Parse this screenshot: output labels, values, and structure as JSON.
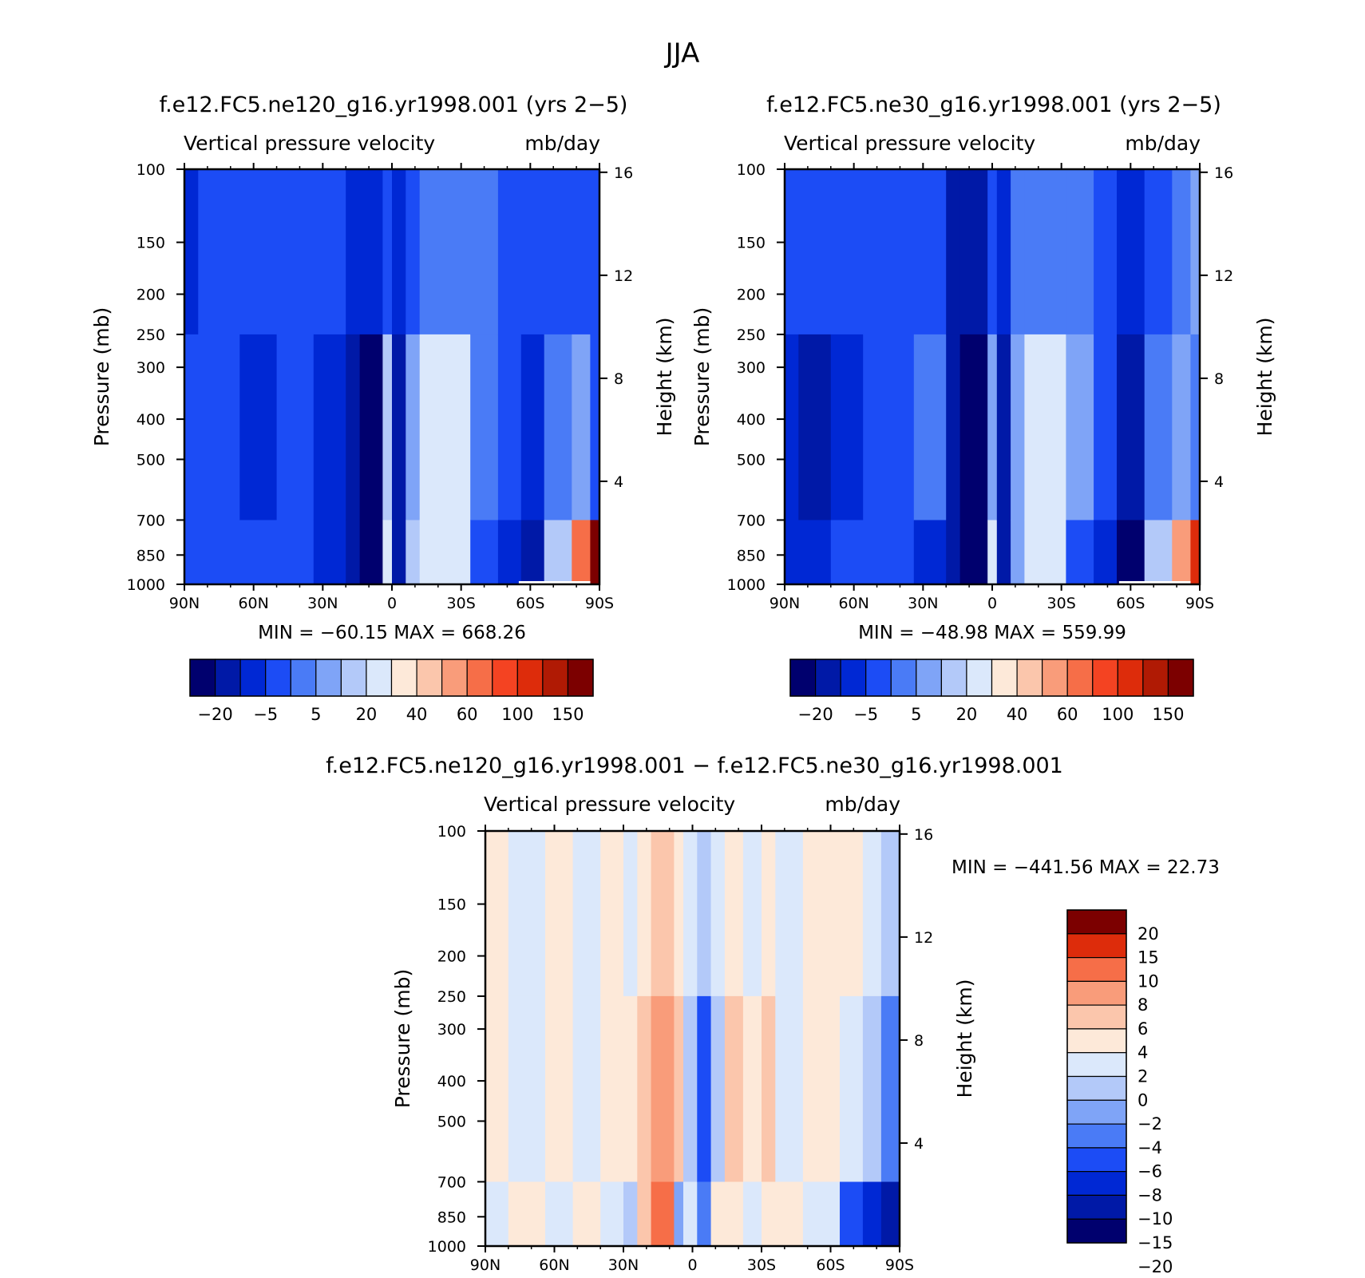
{
  "figure": {
    "title": "JJA"
  },
  "colors": {
    "diverging16": [
      "#00006e",
      "#0019a7",
      "#0028d4",
      "#1c4cf5",
      "#4a7bf6",
      "#7fa4f7",
      "#b3c9f9",
      "#dbe8fb",
      "#fde9d9",
      "#fbc6ac",
      "#f99c7a",
      "#f66e48",
      "#f44322",
      "#dd2c0b",
      "#b01a04",
      "#7c0000"
    ],
    "difference14": [
      "#00006e",
      "#0019a7",
      "#0028d4",
      "#1c4cf5",
      "#4a7bf6",
      "#7fa4f7",
      "#b3c9f9",
      "#dbe8fb",
      "#fde9d9",
      "#fbc6ac",
      "#f99c7a",
      "#f66e48",
      "#dd2c0b",
      "#7c0000"
    ],
    "no_data_strip": "#ffffff"
  },
  "chart_data": [
    {
      "type": "heatmap",
      "title": "f.e12.FC5.ne120_g16.yr1998.001 (yrs 2−5)",
      "subtitle_left": "Vertical pressure velocity",
      "subtitle_right": "mb/day",
      "xlabel": "",
      "ylabel": "Pressure (mb)",
      "ylabel_right": "Height (km)",
      "x_ticks": [
        "90N",
        "60N",
        "30N",
        "0",
        "30S",
        "60S",
        "90S"
      ],
      "x_lat": [
        90,
        60,
        30,
        0,
        -30,
        -60,
        -90
      ],
      "y_ticks": [
        "100",
        "150",
        "200",
        "250",
        "300",
        "400",
        "500",
        "700",
        "850",
        "1000"
      ],
      "y_pressure": [
        100,
        150,
        200,
        250,
        300,
        400,
        500,
        700,
        850,
        1000
      ],
      "y_log_scale": true,
      "right_ticks": [
        "16",
        "12",
        "8",
        "4"
      ],
      "right_height_km": [
        16,
        12,
        8,
        4
      ],
      "min_max_text": "MIN = −60.15   MAX = 668.26",
      "min": -60.15,
      "max": 668.26,
      "colorbar_labels": [
        "−20",
        "−5",
        "5",
        "20",
        "40",
        "60",
        "100",
        "150"
      ],
      "field_columns": [
        {
          "lat0": 90,
          "lat1": 84,
          "top": 2,
          "mid": 3,
          "low": 3
        },
        {
          "lat0": 84,
          "lat1": 66,
          "top": 3,
          "mid": 3,
          "low": 3
        },
        {
          "lat0": 66,
          "lat1": 50,
          "top": 3,
          "mid": 2,
          "low": 3
        },
        {
          "lat0": 50,
          "lat1": 34,
          "top": 3,
          "mid": 3,
          "low": 3
        },
        {
          "lat0": 34,
          "lat1": 20,
          "top": 3,
          "mid": 2,
          "low": 2
        },
        {
          "lat0": 20,
          "lat1": 14,
          "top": 2,
          "mid": 1,
          "low": 1
        },
        {
          "lat0": 14,
          "lat1": 4,
          "top": 2,
          "mid": 0,
          "low": 0
        },
        {
          "lat0": 4,
          "lat1": 0,
          "top": 3,
          "mid": 6,
          "low": 7
        },
        {
          "lat0": 0,
          "lat1": -6,
          "top": 2,
          "mid": 1,
          "low": 1
        },
        {
          "lat0": -6,
          "lat1": -12,
          "top": 3,
          "mid": 5,
          "low": 6
        },
        {
          "lat0": -12,
          "lat1": -34,
          "top": 4,
          "mid": 7,
          "low": 7
        },
        {
          "lat0": -34,
          "lat1": -46,
          "top": 4,
          "mid": 4,
          "low": 3
        },
        {
          "lat0": -46,
          "lat1": -56,
          "top": 3,
          "mid": 3,
          "low": 2
        },
        {
          "lat0": -56,
          "lat1": -66,
          "top": 3,
          "mid": 2,
          "low": 1
        },
        {
          "lat0": -66,
          "lat1": -78,
          "top": 3,
          "mid": 4,
          "low": 6
        },
        {
          "lat0": -78,
          "lat1": -86,
          "top": 3,
          "mid": 5,
          "low": 11
        },
        {
          "lat0": -86,
          "lat1": -90,
          "top": 3,
          "mid": 3,
          "low": 15
        }
      ]
    },
    {
      "type": "heatmap",
      "title": "f.e12.FC5.ne30_g16.yr1998.001 (yrs 2−5)",
      "subtitle_left": "Vertical pressure velocity",
      "subtitle_right": "mb/day",
      "xlabel": "",
      "ylabel": "Pressure (mb)",
      "ylabel_right": "Height (km)",
      "x_ticks": [
        "90N",
        "60N",
        "30N",
        "0",
        "30S",
        "60S",
        "90S"
      ],
      "x_lat": [
        90,
        60,
        30,
        0,
        -30,
        -60,
        -90
      ],
      "y_ticks": [
        "100",
        "150",
        "200",
        "250",
        "300",
        "400",
        "500",
        "700",
        "850",
        "1000"
      ],
      "y_pressure": [
        100,
        150,
        200,
        250,
        300,
        400,
        500,
        700,
        850,
        1000
      ],
      "y_log_scale": true,
      "right_ticks": [
        "16",
        "12",
        "8",
        "4"
      ],
      "right_height_km": [
        16,
        12,
        8,
        4
      ],
      "min_max_text": "MIN = −48.98   MAX = 559.99",
      "min": -48.98,
      "max": 559.99,
      "colorbar_labels": [
        "−20",
        "−5",
        "5",
        "20",
        "40",
        "60",
        "100",
        "150"
      ],
      "field_columns": [
        {
          "lat0": 90,
          "lat1": 84,
          "top": 3,
          "mid": 2,
          "low": 2
        },
        {
          "lat0": 84,
          "lat1": 70,
          "top": 3,
          "mid": 1,
          "low": 2
        },
        {
          "lat0": 70,
          "lat1": 56,
          "top": 3,
          "mid": 2,
          "low": 3
        },
        {
          "lat0": 56,
          "lat1": 34,
          "top": 3,
          "mid": 3,
          "low": 3
        },
        {
          "lat0": 34,
          "lat1": 20,
          "top": 3,
          "mid": 4,
          "low": 2
        },
        {
          "lat0": 20,
          "lat1": 14,
          "top": 1,
          "mid": 1,
          "low": 1
        },
        {
          "lat0": 14,
          "lat1": 2,
          "top": 1,
          "mid": 0,
          "low": 0
        },
        {
          "lat0": 2,
          "lat1": -2,
          "top": 3,
          "mid": 5,
          "low": 7
        },
        {
          "lat0": -2,
          "lat1": -8,
          "top": 2,
          "mid": 1,
          "low": 1
        },
        {
          "lat0": -8,
          "lat1": -14,
          "top": 4,
          "mid": 5,
          "low": 5
        },
        {
          "lat0": -14,
          "lat1": -32,
          "top": 4,
          "mid": 7,
          "low": 7
        },
        {
          "lat0": -32,
          "lat1": -44,
          "top": 4,
          "mid": 5,
          "low": 3
        },
        {
          "lat0": -44,
          "lat1": -54,
          "top": 3,
          "mid": 3,
          "low": 2
        },
        {
          "lat0": -54,
          "lat1": -66,
          "top": 2,
          "mid": 1,
          "low": 0
        },
        {
          "lat0": -66,
          "lat1": -78,
          "top": 3,
          "mid": 4,
          "low": 6
        },
        {
          "lat0": -78,
          "lat1": -86,
          "top": 4,
          "mid": 5,
          "low": 10
        },
        {
          "lat0": -86,
          "lat1": -90,
          "top": 5,
          "mid": 4,
          "low": 13
        }
      ]
    },
    {
      "type": "heatmap",
      "title": "f.e12.FC5.ne120_g16.yr1998.001 − f.e12.FC5.ne30_g16.yr1998.001",
      "subtitle_left": "Vertical pressure velocity",
      "subtitle_right": "mb/day",
      "xlabel": "",
      "ylabel": "Pressure (mb)",
      "ylabel_right": "Height (km)",
      "x_ticks": [
        "90N",
        "60N",
        "30N",
        "0",
        "30S",
        "60S",
        "90S"
      ],
      "x_lat": [
        90,
        60,
        30,
        0,
        -30,
        -60,
        -90
      ],
      "y_ticks": [
        "100",
        "150",
        "200",
        "250",
        "300",
        "400",
        "500",
        "700",
        "850",
        "1000"
      ],
      "y_pressure": [
        100,
        150,
        200,
        250,
        300,
        400,
        500,
        700,
        850,
        1000
      ],
      "y_log_scale": true,
      "right_ticks": [
        "16",
        "12",
        "8",
        "4"
      ],
      "right_height_km": [
        16,
        12,
        8,
        4
      ],
      "min_max_text": "MIN = −441.56   MAX =   22.73",
      "min": -441.56,
      "max": 22.73,
      "colorbar_labels": [
        "20",
        "15",
        "10",
        "8",
        "6",
        "4",
        "2",
        "0",
        "−2",
        "−4",
        "−6",
        "−8",
        "−10",
        "−15",
        "−20"
      ],
      "field_columns": [
        {
          "lat0": 90,
          "lat1": 80,
          "top": 8,
          "mid": 8,
          "low": 7
        },
        {
          "lat0": 80,
          "lat1": 64,
          "top": 7,
          "mid": 7,
          "low": 8
        },
        {
          "lat0": 64,
          "lat1": 52,
          "top": 8,
          "mid": 8,
          "low": 7
        },
        {
          "lat0": 52,
          "lat1": 40,
          "top": 7,
          "mid": 7,
          "low": 8
        },
        {
          "lat0": 40,
          "lat1": 30,
          "top": 8,
          "mid": 8,
          "low": 7
        },
        {
          "lat0": 30,
          "lat1": 24,
          "top": 7,
          "mid": 8,
          "low": 6
        },
        {
          "lat0": 24,
          "lat1": 18,
          "top": 8,
          "mid": 9,
          "low": 9
        },
        {
          "lat0": 18,
          "lat1": 8,
          "top": 9,
          "mid": 10,
          "low": 11
        },
        {
          "lat0": 8,
          "lat1": 4,
          "top": 8,
          "mid": 9,
          "low": 5
        },
        {
          "lat0": 4,
          "lat1": -2,
          "top": 7,
          "mid": 6,
          "low": 7
        },
        {
          "lat0": -2,
          "lat1": -8,
          "top": 6,
          "mid": 3,
          "low": 4
        },
        {
          "lat0": -8,
          "lat1": -14,
          "top": 7,
          "mid": 6,
          "low": 8
        },
        {
          "lat0": -14,
          "lat1": -22,
          "top": 8,
          "mid": 9,
          "low": 8
        },
        {
          "lat0": -22,
          "lat1": -30,
          "top": 7,
          "mid": 8,
          "low": 7
        },
        {
          "lat0": -30,
          "lat1": -36,
          "top": 8,
          "mid": 9,
          "low": 8
        },
        {
          "lat0": -36,
          "lat1": -48,
          "top": 7,
          "mid": 7,
          "low": 8
        },
        {
          "lat0": -48,
          "lat1": -64,
          "top": 8,
          "mid": 8,
          "low": 7
        },
        {
          "lat0": -64,
          "lat1": -74,
          "top": 8,
          "mid": 7,
          "low": 3
        },
        {
          "lat0": -74,
          "lat1": -82,
          "top": 7,
          "mid": 6,
          "low": 2
        },
        {
          "lat0": -82,
          "lat1": -90,
          "top": 6,
          "mid": 4,
          "low": 1
        }
      ]
    }
  ]
}
